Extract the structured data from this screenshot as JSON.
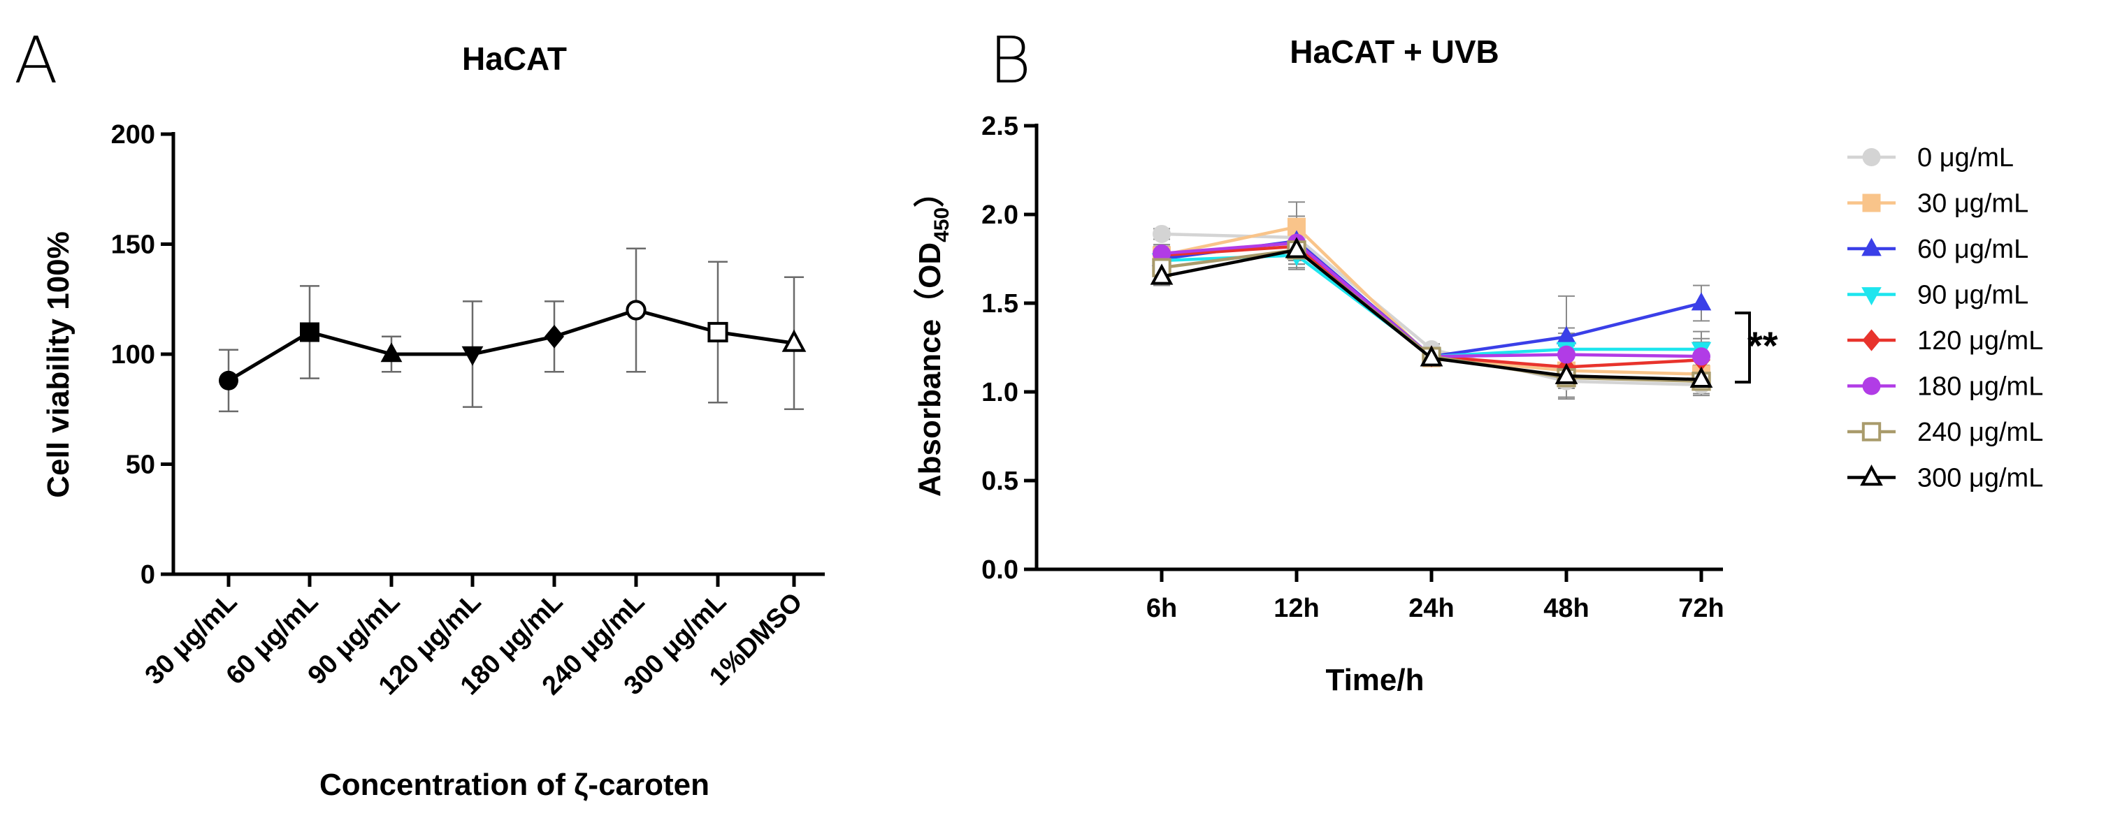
{
  "panels": [
    {
      "letter": "A"
    },
    {
      "letter": "B"
    }
  ],
  "significance": "**",
  "chart_data": [
    {
      "type": "line",
      "title": "HaCAT",
      "xlabel": "Concentration of ζ-caroten",
      "ylabel": "Cell viability 100%",
      "ylim": [
        0,
        200
      ],
      "yticks": [
        "0",
        "50",
        "100",
        "150",
        "200"
      ],
      "categories": [
        "30 μg/mL",
        "60 μg/mL",
        "90 μg/mL",
        "120 μg/mL",
        "180 μg/mL",
        "240 μg/mL",
        "300 μg/mL",
        "1%DMSO"
      ],
      "values": [
        88,
        110,
        100,
        100,
        108,
        120,
        110,
        105
      ],
      "errors": [
        14,
        21,
        8,
        24,
        16,
        28,
        32,
        30
      ],
      "markers": [
        "circle",
        "square",
        "triangle-up",
        "triangle-down",
        "diamond",
        "circle-open",
        "square-open",
        "triangle-open"
      ],
      "color": "#000000",
      "grid": false
    },
    {
      "type": "line",
      "title": "HaCAT + UVB",
      "xlabel": "Time/h",
      "ylabel": "Absorbance（OD",
      "ylabel_sub": "450",
      "ylabel_end": "）",
      "ylim": [
        0,
        2.5
      ],
      "yticks": [
        "0.0",
        "0.5",
        "1.0",
        "1.5",
        "2.0",
        "2.5"
      ],
      "categories": [
        "6h",
        "12h",
        "24h",
        "48h",
        "72h"
      ],
      "legend_position": "right",
      "grid": false,
      "series": [
        {
          "name": "0 μg/mL",
          "color": "#d4d4d4",
          "marker": "circle",
          "values": [
            1.89,
            1.87,
            1.24,
            1.06,
            1.04
          ],
          "errors": [
            0.03,
            0.12,
            0.03,
            0.09,
            0.05
          ]
        },
        {
          "name": "30 μg/mL",
          "color": "#f9c48a",
          "marker": "square",
          "values": [
            1.77,
            1.93,
            1.19,
            1.12,
            1.1
          ],
          "errors": [
            0.05,
            0.14,
            0.03,
            0.1,
            0.08
          ]
        },
        {
          "name": "60 μg/mL",
          "color": "#3a3fe8",
          "marker": "triangle-up",
          "values": [
            1.75,
            1.85,
            1.2,
            1.31,
            1.5
          ],
          "errors": [
            0.05,
            0.1,
            0.03,
            0.23,
            0.1
          ]
        },
        {
          "name": "90 μg/mL",
          "color": "#1ee5ee",
          "marker": "triangle-down",
          "values": [
            1.74,
            1.77,
            1.2,
            1.24,
            1.24
          ],
          "errors": [
            0.05,
            0.08,
            0.03,
            0.12,
            0.1
          ]
        },
        {
          "name": "120 μg/mL",
          "color": "#e8332c",
          "marker": "diamond",
          "values": [
            1.77,
            1.82,
            1.2,
            1.14,
            1.18
          ],
          "errors": [
            0.05,
            0.1,
            0.03,
            0.12,
            0.1
          ]
        },
        {
          "name": "180 μg/mL",
          "color": "#b13ce6",
          "marker": "circle",
          "values": [
            1.78,
            1.84,
            1.2,
            1.21,
            1.2
          ],
          "errors": [
            0.05,
            0.1,
            0.03,
            0.12,
            0.1
          ]
        },
        {
          "name": "240 μg/mL",
          "color": "#a99b6b",
          "marker": "square-open",
          "values": [
            1.7,
            1.8,
            1.2,
            1.08,
            1.06
          ],
          "errors": [
            0.05,
            0.1,
            0.03,
            0.12,
            0.08
          ]
        },
        {
          "name": "300 μg/mL",
          "color": "#000000",
          "marker": "triangle-open",
          "values": [
            1.65,
            1.8,
            1.19,
            1.09,
            1.07
          ],
          "errors": [
            0.05,
            0.08,
            0.03,
            0.12,
            0.08
          ]
        }
      ]
    }
  ]
}
